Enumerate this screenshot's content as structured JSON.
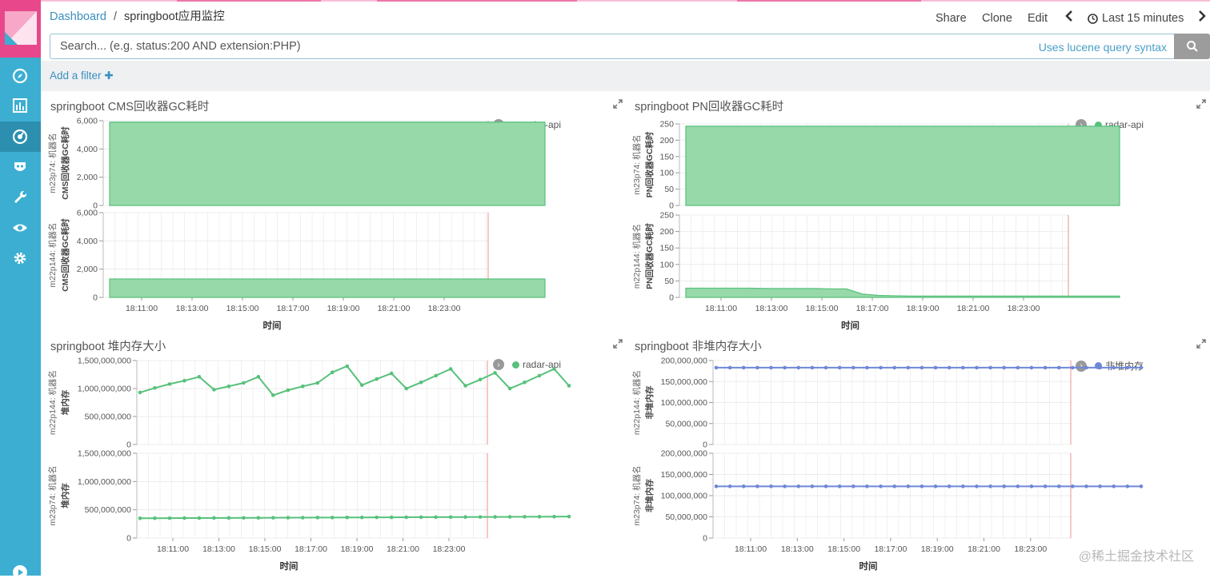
{
  "breadcrumb": {
    "root": "Dashboard",
    "separator": "/",
    "current": "springboot应用监控"
  },
  "topnav": {
    "share": "Share",
    "clone": "Clone",
    "edit": "Edit",
    "time_range": "Last 15 minutes"
  },
  "search": {
    "placeholder": "Search... (e.g. status:200 AND extension:PHP)",
    "syntax_link": "Uses lucene query syntax"
  },
  "filter": {
    "add_label": "Add a filter"
  },
  "colors": {
    "green": "#57c17b",
    "green_fill": "#97d9a9",
    "blue": "#6f87d8",
    "red_line": "#f1a2a2",
    "accent": "#3caed2",
    "pink": "#e8488b"
  },
  "watermark": "@稀土掘金技术社区",
  "x_ticks": [
    "18:11:00",
    "18:13:00",
    "18:15:00",
    "18:17:00",
    "18:19:00",
    "18:21:00",
    "18:23:00"
  ],
  "chart_data": [
    {
      "type": "area",
      "title": "springboot CMS回收器GC耗时",
      "legend": [
        "radar-api"
      ],
      "xlabel": "时间",
      "subcharts": [
        {
          "row_label": "m23p74: 机器名",
          "ylabel": "CMS回收器GC耗时",
          "ylim": [
            0,
            6000
          ],
          "y_ticks": [
            "0",
            "2,000",
            "4,000",
            "6,000"
          ],
          "values": [
            5900,
            5900,
            5900,
            5900,
            5900,
            5900,
            5900,
            5900,
            5900,
            5900,
            5900,
            5900,
            5900,
            5900,
            5900,
            5900,
            5900,
            5900,
            5900,
            5900,
            5900,
            5900,
            5900,
            5900,
            5900,
            5900,
            5900,
            5900
          ]
        },
        {
          "row_label": "m22p144: 机器名",
          "ylabel": "CMS回收器GC耗时",
          "ylim": [
            0,
            6000
          ],
          "y_ticks": [
            "0",
            "2,000",
            "4,000",
            "6,000"
          ],
          "values": [
            1300,
            1300,
            1300,
            1300,
            1300,
            1300,
            1300,
            1300,
            1300,
            1300,
            1300,
            1300,
            1300,
            1300,
            1300,
            1300,
            1300,
            1300,
            1300,
            1300,
            1300,
            1300,
            1300,
            1300,
            1300,
            1300,
            1300,
            1300
          ]
        }
      ]
    },
    {
      "type": "area",
      "title": "springboot PN回收器GC耗时",
      "legend": [
        "radar-api"
      ],
      "xlabel": "时间",
      "subcharts": [
        {
          "row_label": "m23p74: 机器名",
          "ylabel": "PN回收器GC耗时",
          "ylim": [
            0,
            250
          ],
          "y_ticks": [
            "0",
            "50",
            "100",
            "150",
            "200",
            "250"
          ],
          "values": [
            243,
            243,
            243,
            243,
            243,
            243,
            243,
            243,
            243,
            243,
            243,
            243,
            243,
            243,
            243,
            243,
            243,
            243,
            243,
            243,
            243,
            243,
            243,
            243,
            243,
            243,
            243,
            243
          ]
        },
        {
          "row_label": "m22p144: 机器名",
          "ylabel": "PN回收器GC耗时",
          "ylim": [
            0,
            250
          ],
          "y_ticks": [
            "0",
            "50",
            "100",
            "150",
            "200",
            "250"
          ],
          "values": [
            28,
            28,
            28,
            28,
            28,
            27,
            27,
            27,
            27,
            26,
            26,
            10,
            6,
            5,
            4,
            4,
            4,
            4,
            4,
            4,
            4,
            4,
            4,
            4,
            4,
            4,
            4,
            4
          ]
        }
      ]
    },
    {
      "type": "line",
      "title": "springboot 堆内存大小",
      "legend": [
        "radar-api"
      ],
      "xlabel": "时间",
      "subcharts": [
        {
          "row_label": "m22p144: 机器名",
          "ylabel": "堆内存",
          "ylim": [
            0,
            1500000000
          ],
          "y_ticks": [
            "0",
            "500,000,000",
            "1,000,000,000",
            "1,500,000,000"
          ],
          "values": [
            930000000,
            1010000000,
            1080000000,
            1140000000,
            1210000000,
            980000000,
            1040000000,
            1100000000,
            1210000000,
            880000000,
            970000000,
            1040000000,
            1100000000,
            1290000000,
            1400000000,
            1060000000,
            1170000000,
            1270000000,
            1000000000,
            1110000000,
            1230000000,
            1350000000,
            1050000000,
            1160000000,
            1280000000,
            1000000000,
            1110000000,
            1230000000,
            1350000000,
            1050000000
          ]
        },
        {
          "row_label": "m23p74: 机器名",
          "ylabel": "堆内存",
          "ylim": [
            0,
            1500000000
          ],
          "y_ticks": [
            "0",
            "500,000,000",
            "1,000,000,000",
            "1,500,000,000"
          ],
          "values": [
            350000000,
            351000000,
            352000000,
            353000000,
            354000000,
            355000000,
            356000000,
            357000000,
            358000000,
            359000000,
            360000000,
            361000000,
            362000000,
            363000000,
            364000000,
            365000000,
            366000000,
            367000000,
            368000000,
            369000000,
            370000000,
            371000000,
            372000000,
            373000000,
            374000000,
            375000000,
            376000000,
            377000000,
            378000000,
            380000000
          ]
        }
      ]
    },
    {
      "type": "line",
      "title": "springboot 非堆内存大小",
      "legend": [
        "非堆内存"
      ],
      "xlabel": "时间",
      "subcharts": [
        {
          "row_label": "m22p144: 机器名",
          "ylabel": "非堆内存",
          "ylim": [
            0,
            200000000
          ],
          "y_ticks": [
            "0",
            "50,000,000",
            "100,000,000",
            "150,000,000",
            "200,000,000"
          ],
          "values": [
            183000000,
            183000000,
            183000000,
            183000000,
            183000000,
            183000000,
            183000000,
            183000000,
            183000000,
            183000000,
            183000000,
            183000000,
            183000000,
            183000000,
            183000000,
            183000000,
            183000000,
            183000000,
            183000000,
            183000000,
            183000000,
            183000000,
            183000000,
            183000000,
            183000000,
            183000000,
            183000000,
            183000000,
            183000000,
            183000000,
            183000000,
            183000000
          ]
        },
        {
          "row_label": "m23p74: 机器名",
          "ylabel": "非堆内存",
          "ylim": [
            0,
            200000000
          ],
          "y_ticks": [
            "0",
            "50,000,000",
            "100,000,000",
            "150,000,000",
            "200,000,000"
          ],
          "values": [
            122000000,
            122000000,
            122000000,
            122000000,
            122000000,
            122000000,
            122000000,
            122000000,
            122000000,
            122000000,
            122000000,
            122000000,
            122000000,
            122000000,
            122000000,
            122000000,
            122000000,
            122000000,
            122000000,
            122000000,
            122000000,
            122000000,
            122000000,
            122000000,
            122000000,
            122000000,
            122000000,
            122000000,
            122000000,
            122000000,
            122000000,
            122000000
          ]
        }
      ]
    }
  ]
}
